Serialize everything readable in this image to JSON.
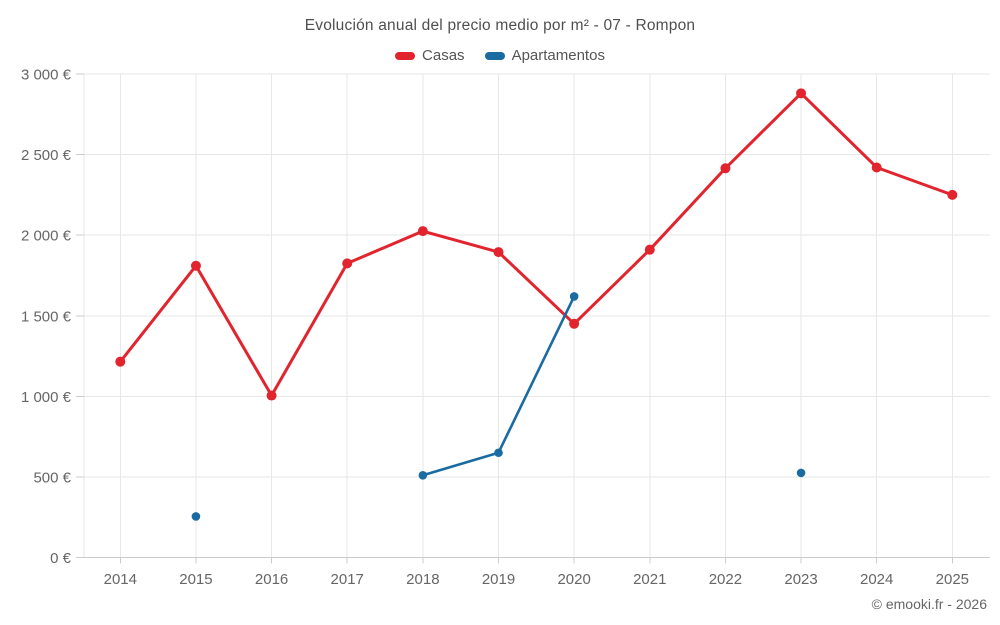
{
  "chart": {
    "title": "Evolución anual del precio medio por m² - 07 - Rompon",
    "credit": "© emooki.fr - 2026",
    "colors": {
      "grid": "#e7e7e7",
      "axis": "#cccccc",
      "tick_label": "#666666",
      "title_text": "#4f4f4f",
      "casas": "#e1242d",
      "apartamentos": "#1a6ba1"
    }
  },
  "chart_data": {
    "type": "line",
    "title": "Evolución anual del precio medio por m² - 07 - Rompon",
    "xlabel": "",
    "ylabel": "",
    "grid": true,
    "legend_position": "top",
    "categories": [
      2014,
      2015,
      2016,
      2017,
      2018,
      2019,
      2020,
      2021,
      2022,
      2023,
      2024,
      2025
    ],
    "series": [
      {
        "name": "Casas",
        "color": "#e1242d",
        "values": [
          1215,
          1810,
          1005,
          1825,
          2025,
          1895,
          1450,
          1910,
          2415,
          2880,
          2420,
          2250
        ]
      },
      {
        "name": "Apartamentos",
        "color": "#1a6ba1",
        "values": [
          null,
          255,
          null,
          null,
          510,
          650,
          1620,
          null,
          null,
          525,
          null,
          null
        ]
      }
    ],
    "ylim": [
      0,
      3000
    ],
    "yticks": [
      0,
      500,
      1000,
      1500,
      2000,
      2500,
      3000
    ],
    "ytick_labels": [
      "0 €",
      "500 €",
      "1 000 €",
      "1 500 €",
      "2 000 €",
      "2 500 €",
      "3 000 €"
    ]
  }
}
